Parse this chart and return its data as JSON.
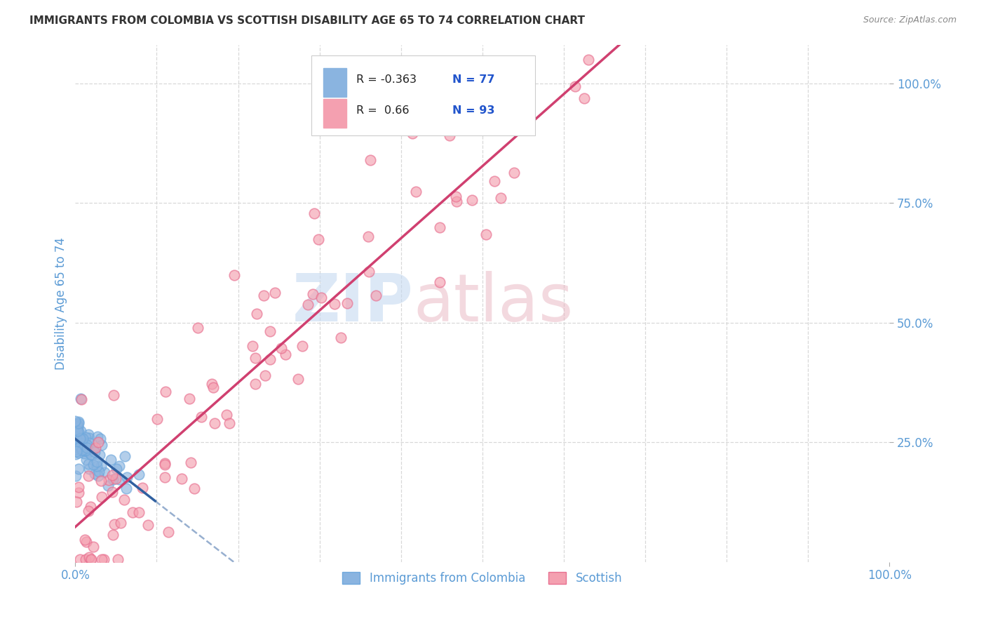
{
  "title": "IMMIGRANTS FROM COLOMBIA VS SCOTTISH DISABILITY AGE 65 TO 74 CORRELATION CHART",
  "source": "Source: ZipAtlas.com",
  "ylabel": "Disability Age 65 to 74",
  "legend_labels": [
    "Immigrants from Colombia",
    "Scottish"
  ],
  "r_blue": -0.363,
  "n_blue": 77,
  "r_pink": 0.66,
  "n_pink": 93,
  "blue_color": "#8ab4e0",
  "pink_color": "#f4a0b0",
  "blue_edge_color": "#6fa8dc",
  "pink_edge_color": "#e87090",
  "blue_trend_color": "#3060a0",
  "pink_trend_color": "#d04070",
  "legend_r_color": "#2255cc",
  "title_color": "#333333",
  "axis_label_color": "#5b9bd5",
  "watermark_zip_color": "#c5d9f1",
  "watermark_atlas_color": "#e8b4c0",
  "background_color": "#ffffff",
  "grid_color": "#d8d8d8",
  "xlim": [
    0,
    1.0
  ],
  "ylim": [
    0,
    1.08
  ],
  "y_ticks": [
    0.25,
    0.5,
    0.75,
    1.0
  ],
  "y_tick_labels": [
    "25.0%",
    "50.0%",
    "75.0%",
    "100.0%"
  ],
  "x_ticks": [
    0.0,
    1.0
  ],
  "x_tick_labels": [
    "0.0%",
    "100.0%"
  ]
}
